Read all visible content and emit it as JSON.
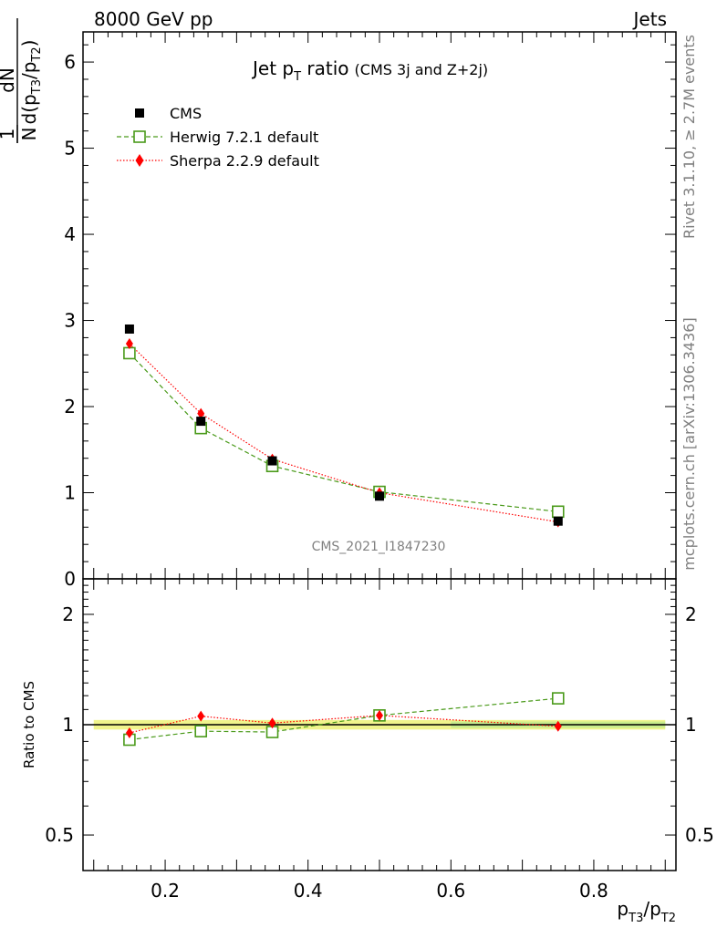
{
  "header": {
    "left": "8000 GeV pp",
    "right": "Jets"
  },
  "plot_title": {
    "main_pre": "Jet p",
    "main_sub": "T",
    "main_post": " ratio",
    "small": "(CMS 3j and Z+2j)"
  },
  "watermark": "CMS_2021_I1847230",
  "side": {
    "rivet": "Rivet 3.1.10, ≥ 2.7M events",
    "mcplots": "mcplots.cern.ch [arXiv:1306.3436]"
  },
  "ylabel_main": {
    "one": "1",
    "n": "N",
    "dn": "dN",
    "d_open": "d(p",
    "sub1": "T3",
    "slash": "/p",
    "sub2": "T2",
    "close": ")"
  },
  "ylabel_ratio": "Ratio to CMS",
  "xlabel": {
    "p1": "p",
    "s1": "T3",
    "p2": "/p",
    "s2": "T2"
  },
  "legend": [
    {
      "label": "CMS",
      "color": "#000000",
      "marker": "filled-square"
    },
    {
      "label": "Herwig 7.2.1 default",
      "color": "#4a9a1a",
      "marker": "open-square",
      "line": "dashed"
    },
    {
      "label": "Sherpa 2.2.9 default",
      "color": "#ff0000",
      "marker": "diamond",
      "line": "dotted"
    }
  ],
  "chart_data": [
    {
      "type": "scatter",
      "panel": "main",
      "xlim": [
        0.085,
        0.915
      ],
      "ylim": [
        0,
        6.35
      ],
      "y_ticks": [
        0,
        1,
        2,
        3,
        4,
        5,
        6
      ],
      "x": [
        0.15,
        0.25,
        0.35,
        0.5,
        0.75
      ],
      "series": [
        {
          "name": "CMS",
          "values": [
            2.9,
            1.83,
            1.37,
            0.96,
            0.67
          ]
        },
        {
          "name": "Herwig 7.2.1 default",
          "values": [
            2.62,
            1.75,
            1.31,
            1.01,
            0.78
          ]
        },
        {
          "name": "Sherpa 2.2.9 default",
          "values": [
            2.73,
            1.92,
            1.39,
            1.0,
            0.66
          ]
        }
      ]
    },
    {
      "type": "scatter",
      "panel": "ratio",
      "xlim": [
        0.085,
        0.915
      ],
      "ylim": [
        0.4,
        2.5
      ],
      "log_y": true,
      "y_ticks": [
        0.5,
        1,
        2
      ],
      "x_ticks": [
        0.2,
        0.4,
        0.6,
        0.8
      ],
      "x": [
        0.15,
        0.25,
        0.35,
        0.5,
        0.75
      ],
      "band": {
        "x": [
          0.1,
          0.9
        ],
        "lower": 0.97,
        "upper": 1.03
      },
      "series": [
        {
          "name": "Herwig 7.2.1 default",
          "values": [
            0.91,
            0.96,
            0.955,
            1.06,
            1.18
          ]
        },
        {
          "name": "Sherpa 2.2.9 default",
          "values": [
            0.95,
            1.055,
            1.01,
            1.06,
            0.99
          ]
        }
      ]
    }
  ]
}
